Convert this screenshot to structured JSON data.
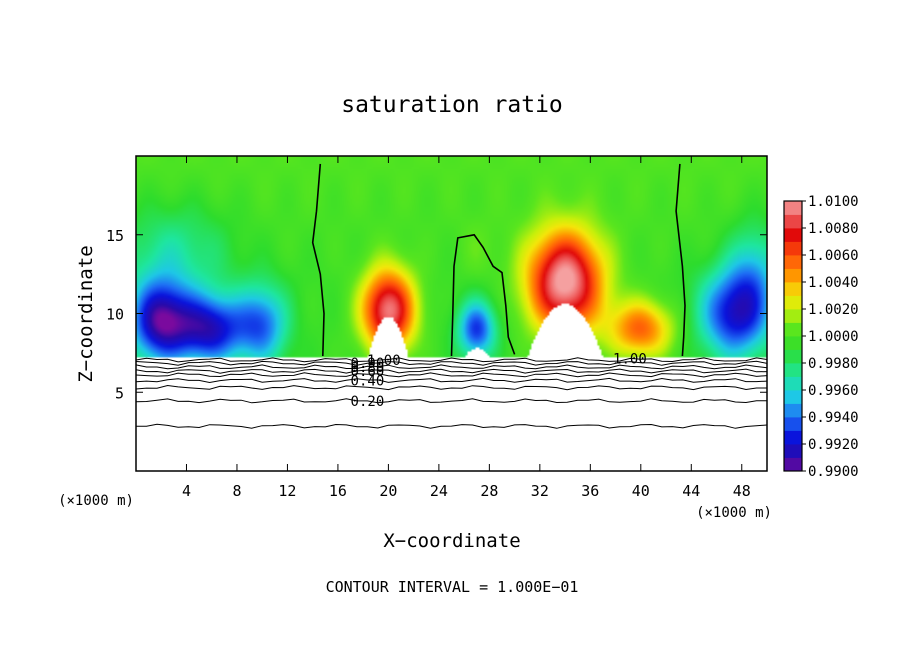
{
  "chart_data": {
    "type": "heatmap",
    "title": "saturation ratio",
    "xlabel": "X−coordinate",
    "ylabel": "Z−coordinate",
    "x_unit_label": "(×1000 m)",
    "z_unit_label": "(×1000 m)",
    "footer": "CONTOUR INTERVAL = 1.000E−01",
    "xlim": [
      0,
      50
    ],
    "ylim": [
      0,
      20
    ],
    "x_ticks": [
      "4",
      "8",
      "12",
      "16",
      "20",
      "24",
      "28",
      "32",
      "36",
      "40",
      "44",
      "48"
    ],
    "y_ticks": [
      "5",
      "10",
      "15"
    ],
    "x_tick_values": [
      4,
      8,
      12,
      16,
      20,
      24,
      28,
      32,
      36,
      40,
      44,
      48
    ],
    "y_tick_values": [
      5,
      10,
      15
    ],
    "colorbar": {
      "min": 0.99,
      "max": 1.01,
      "labels": [
        "1.0100",
        "1.0080",
        "1.0060",
        "1.0040",
        "1.0020",
        "1.0000",
        "0.9980",
        "0.9960",
        "0.9940",
        "0.9920",
        "0.9900"
      ],
      "label_values": [
        1.01,
        1.008,
        1.006,
        1.004,
        1.002,
        1.0,
        0.998,
        0.996,
        0.994,
        0.992,
        0.99
      ]
    },
    "colormap": [
      {
        "v": 0.99,
        "color": "#7a0a9e"
      },
      {
        "v": 0.991,
        "color": "#2a0aa8"
      },
      {
        "v": 0.9925,
        "color": "#0a14dc"
      },
      {
        "v": 0.994,
        "color": "#1e6ef5"
      },
      {
        "v": 0.9955,
        "color": "#1ec8e6"
      },
      {
        "v": 0.997,
        "color": "#1ee6a0"
      },
      {
        "v": 0.999,
        "color": "#2ddc2d"
      },
      {
        "v": 1.0005,
        "color": "#5ae61e"
      },
      {
        "v": 1.002,
        "color": "#c8f00a"
      },
      {
        "v": 1.003,
        "color": "#f5e60a"
      },
      {
        "v": 1.0045,
        "color": "#ff9600"
      },
      {
        "v": 1.006,
        "color": "#ff500a"
      },
      {
        "v": 1.0075,
        "color": "#e10a0a"
      },
      {
        "v": 1.009,
        "color": "#f06464"
      },
      {
        "v": 1.01,
        "color": "#f5a0a0"
      }
    ],
    "field": {
      "base": 0.9995,
      "top_value": 1.0002,
      "cloud_base_z": 7.2,
      "features": [
        {
          "x": 2.0,
          "z": 9.5,
          "amp": -0.0088,
          "sx": 2.5,
          "sz": 2.6
        },
        {
          "x": 6.0,
          "z": 9.0,
          "amp": -0.0075,
          "sx": 2.6,
          "sz": 2.2
        },
        {
          "x": 10.0,
          "z": 9.3,
          "amp": -0.0055,
          "sx": 2.0,
          "sz": 2.5
        },
        {
          "x": 3.0,
          "z": 14.0,
          "amp": -0.0025,
          "sx": 4.5,
          "sz": 3.0
        },
        {
          "x": 20.0,
          "z": 10.2,
          "amp": 0.01,
          "sx": 2.1,
          "sz": 2.6
        },
        {
          "x": 27.0,
          "z": 9.0,
          "amp": -0.0065,
          "sx": 1.5,
          "sz": 1.8
        },
        {
          "x": 27.0,
          "z": 14.0,
          "amp": 0.0007,
          "sx": 1.6,
          "sz": 2.0
        },
        {
          "x": 34.0,
          "z": 12.0,
          "amp": 0.011,
          "sx": 3.0,
          "sz": 3.2
        },
        {
          "x": 40.0,
          "z": 9.0,
          "amp": 0.006,
          "sx": 2.5,
          "sz": 1.8
        },
        {
          "x": 47.5,
          "z": 10.0,
          "amp": -0.0075,
          "sx": 2.8,
          "sz": 2.8
        },
        {
          "x": 49.0,
          "z": 13.0,
          "amp": -0.003,
          "sx": 2.0,
          "sz": 3.0
        }
      ],
      "white_regions": [
        {
          "x": 20.0,
          "top": 9.8,
          "half_width": 1.6
        },
        {
          "x": 34.0,
          "top": 10.6,
          "half_width": 3.0
        },
        {
          "x": 27.0,
          "top": 7.8,
          "half_width": 1.0
        }
      ]
    },
    "contour_1_boundaries": [
      {
        "points": [
          [
            14.6,
            19.5
          ],
          [
            14.3,
            16.5
          ],
          [
            14.0,
            14.5
          ],
          [
            14.6,
            12.5
          ],
          [
            14.9,
            10.0
          ],
          [
            14.8,
            7.3
          ]
        ]
      },
      {
        "points": [
          [
            25.0,
            7.3
          ],
          [
            25.1,
            10.0
          ],
          [
            25.2,
            13.0
          ],
          [
            25.5,
            14.8
          ],
          [
            26.8,
            15.0
          ],
          [
            27.5,
            14.2
          ],
          [
            28.3,
            13.0
          ],
          [
            29.0,
            12.6
          ],
          [
            29.3,
            10.5
          ],
          [
            29.5,
            8.5
          ],
          [
            30.0,
            7.4
          ]
        ]
      },
      {
        "points": [
          [
            43.1,
            19.5
          ],
          [
            42.8,
            16.5
          ],
          [
            43.3,
            13.0
          ],
          [
            43.5,
            10.5
          ],
          [
            43.4,
            8.5
          ],
          [
            43.3,
            7.3
          ]
        ]
      }
    ],
    "lower_contours": [
      {
        "z": 7.05,
        "label": "1.00",
        "label_x": 18.3
      },
      {
        "z": 6.85,
        "label": "0.90",
        "label_x": 17.0
      },
      {
        "z": 6.6,
        "label": "0.80",
        "label_x": 17.0
      },
      {
        "z": 6.35,
        "label": "0.60",
        "label_x": 17.0
      },
      {
        "z": 6.1,
        "label": "",
        "label_x": 0
      },
      {
        "z": 5.75,
        "label": "0.40",
        "label_x": 17.0
      },
      {
        "z": 5.3,
        "label": "",
        "label_x": 0
      },
      {
        "z": 4.45,
        "label": "0.20",
        "label_x": 17.0
      },
      {
        "z": 2.85,
        "label": "",
        "label_x": 0
      }
    ],
    "extra_contour_label": {
      "label": "1.00",
      "x": 37.8,
      "z": 7.15
    }
  }
}
